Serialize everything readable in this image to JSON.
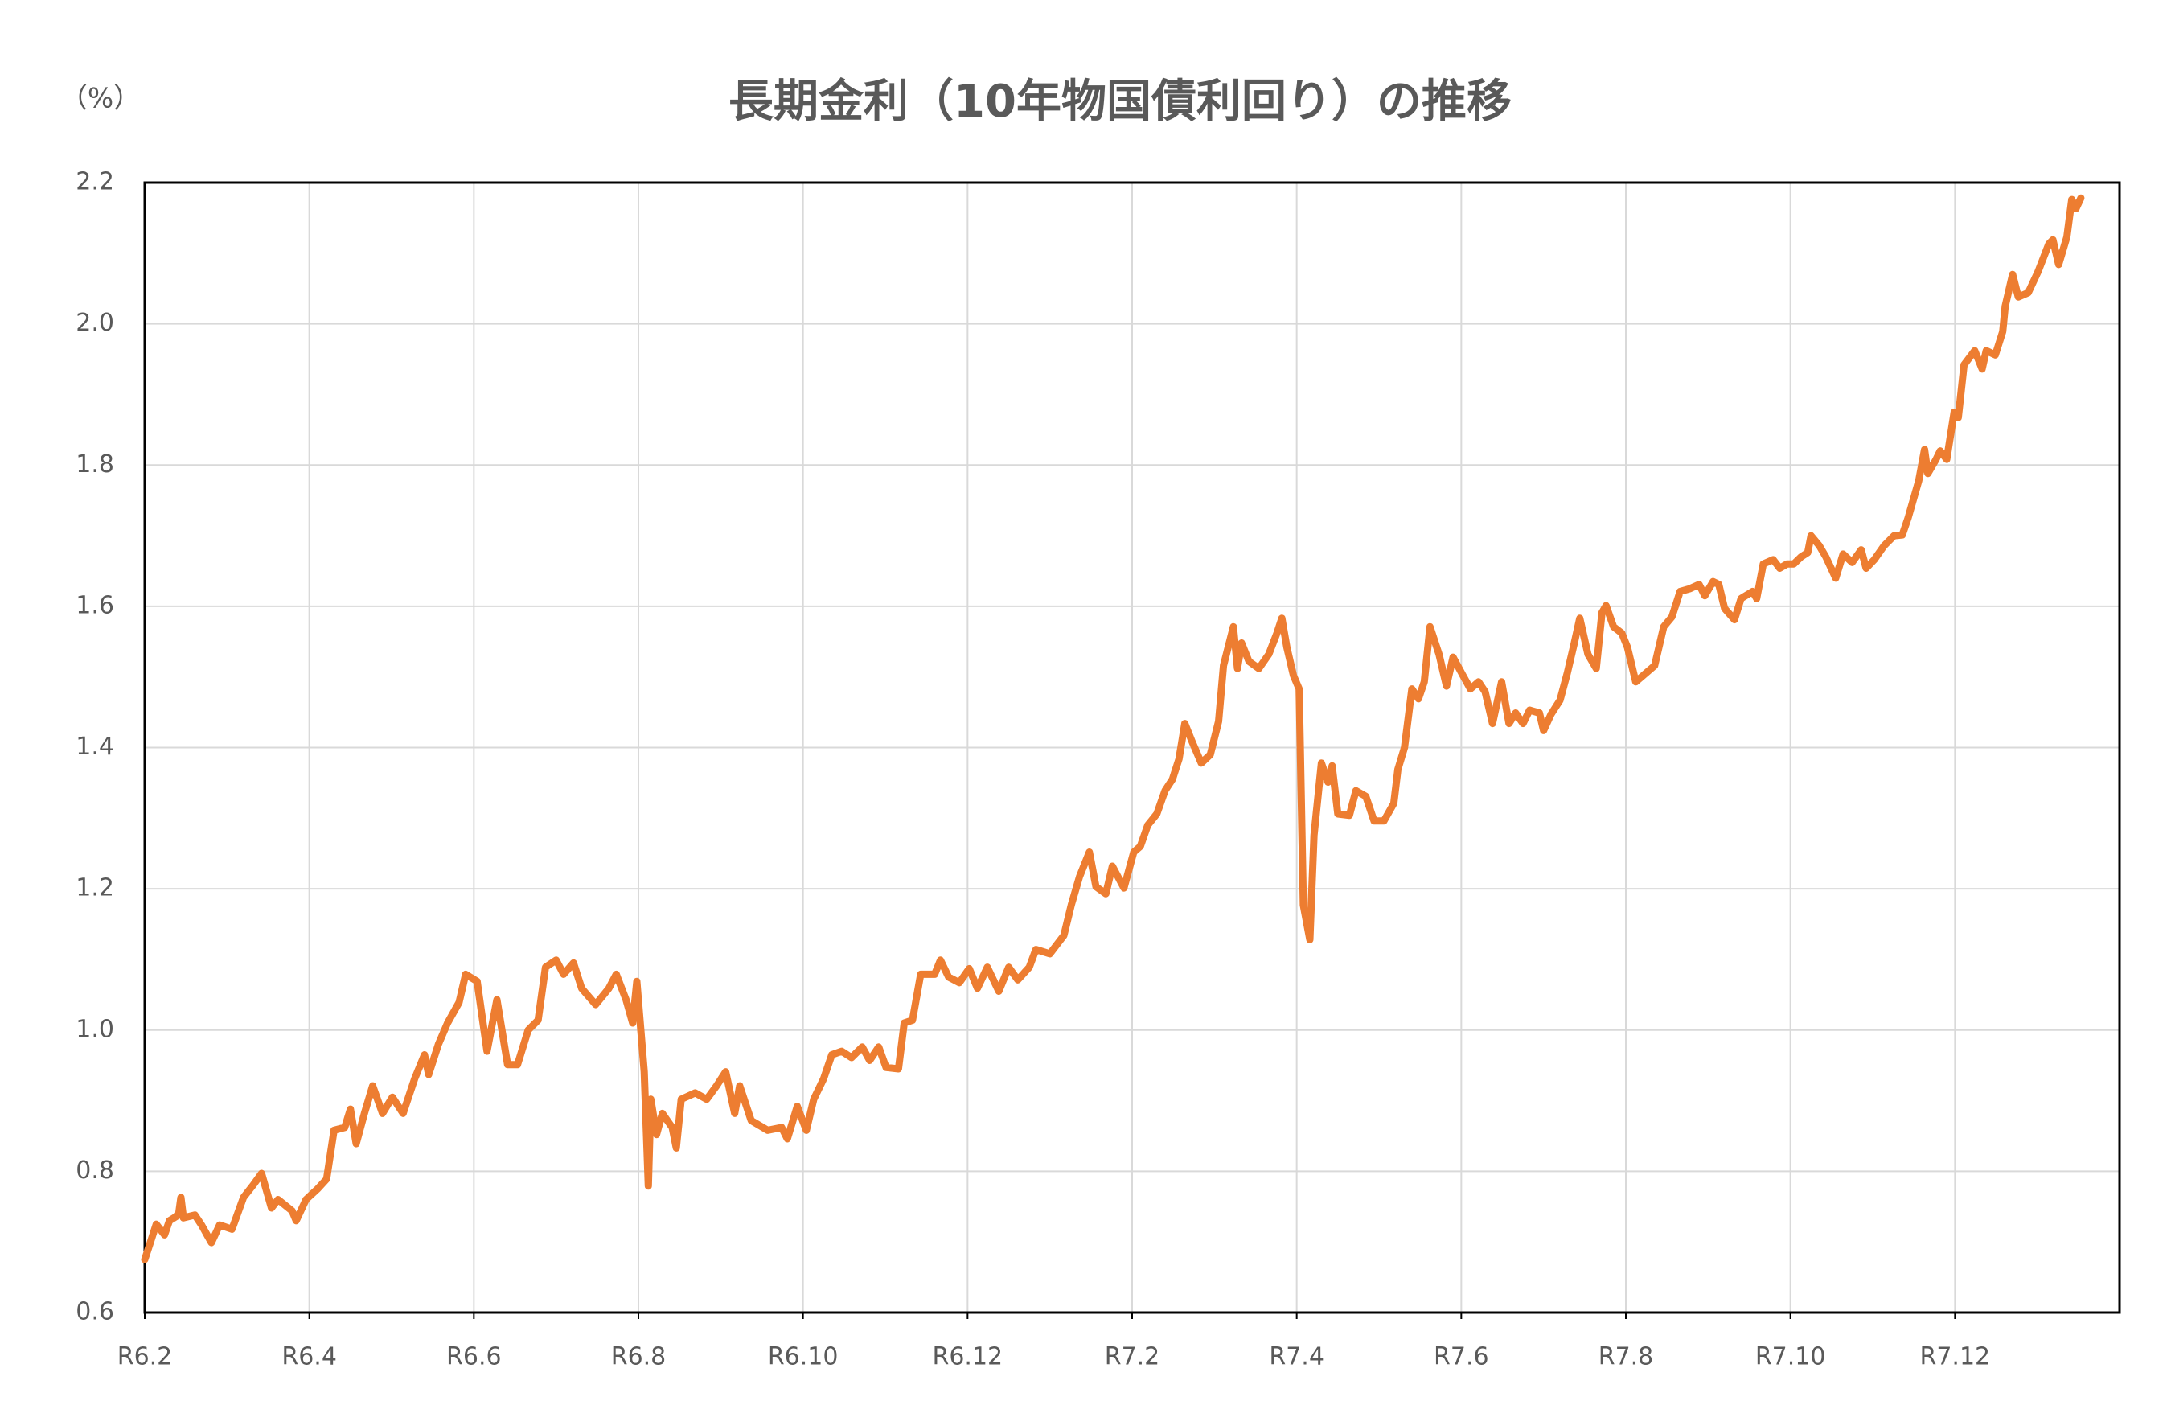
{
  "chart_data": {
    "type": "line",
    "title": "長期金利（10年物国債利回り）の推移",
    "y_unit_label": "（%）",
    "color": "#ED7D31",
    "grid": true,
    "xlim": [
      0,
      24
    ],
    "xticks": [
      {
        "value": 0,
        "label": "R6.2"
      },
      {
        "value": 2,
        "label": "R6.4"
      },
      {
        "value": 4,
        "label": "R6.6"
      },
      {
        "value": 6,
        "label": "R6.8"
      },
      {
        "value": 8,
        "label": "R6.10"
      },
      {
        "value": 10,
        "label": "R6.12"
      },
      {
        "value": 12,
        "label": "R7.2"
      },
      {
        "value": 14,
        "label": "R7.4"
      },
      {
        "value": 16,
        "label": "R7.6"
      },
      {
        "value": 18,
        "label": "R7.8"
      },
      {
        "value": 20,
        "label": "R7.10"
      },
      {
        "value": 22,
        "label": "R7.12"
      }
    ],
    "ylim": [
      0.6,
      2.2
    ],
    "yticks": [
      0.6,
      0.8,
      {
        "value": 1.0,
        "label": "1.0"
      },
      1.2,
      1.4,
      1.6,
      1.8,
      {
        "value": 2.0,
        "label": "2.0"
      },
      2.2
    ],
    "x": [
      0,
      0.07,
      0.14,
      0.24,
      0.3,
      0.41,
      0.44,
      0.47,
      0.61,
      0.69,
      0.81,
      0.91,
      1.06,
      1.2,
      1.32,
      1.42,
      1.54,
      1.62,
      1.79,
      1.84,
      1.96,
      2.1,
      2.21,
      2.3,
      2.43,
      2.5,
      2.57,
      2.67,
      2.77,
      2.89,
      3.01,
      3.14,
      3.28,
      3.4,
      3.45,
      3.57,
      3.68,
      3.82,
      3.9,
      4.04,
      4.16,
      4.28,
      4.41,
      4.53,
      4.66,
      4.78,
      4.87,
      5.0,
      5.09,
      5.21,
      5.31,
      5.48,
      5.64,
      5.73,
      5.85,
      5.93,
      5.98,
      6.07,
      6.12,
      6.15,
      6.22,
      6.29,
      6.41,
      6.46,
      6.52,
      6.69,
      6.83,
      6.95,
      7.06,
      7.17,
      7.23,
      7.37,
      7.57,
      7.74,
      7.81,
      7.93,
      8.04,
      8.13,
      8.25,
      8.35,
      8.47,
      8.59,
      8.72,
      8.81,
      8.92,
      9.01,
      9.16,
      9.23,
      9.33,
      9.43,
      9.6,
      9.67,
      9.77,
      9.9,
      10.02,
      10.12,
      10.24,
      10.38,
      10.5,
      10.61,
      10.75,
      10.83,
      11.0,
      11.17,
      11.26,
      11.36,
      11.48,
      11.56,
      11.68,
      11.76,
      11.9,
      12.02,
      12.1,
      12.19,
      12.3,
      12.4,
      12.49,
      12.57,
      12.64,
      12.73,
      12.84,
      12.95,
      13.05,
      13.11,
      13.23,
      13.28,
      13.33,
      13.42,
      13.54,
      13.66,
      13.76,
      13.82,
      13.88,
      13.96,
      14.03,
      14.08,
      14.16,
      14.21,
      14.3,
      14.38,
      14.43,
      14.5,
      14.64,
      14.72,
      14.84,
      14.94,
      15.06,
      15.18,
      15.23,
      15.31,
      15.4,
      15.48,
      15.55,
      15.62,
      15.73,
      15.82,
      15.9,
      16.02,
      16.11,
      16.21,
      16.29,
      16.38,
      16.49,
      16.58,
      16.66,
      16.75,
      16.83,
      16.95,
      17.0,
      17.09,
      17.2,
      17.29,
      17.37,
      17.44,
      17.54,
      17.64,
      17.71,
      17.76,
      17.85,
      17.95,
      18.02,
      18.12,
      18.22,
      18.35,
      18.46,
      18.56,
      18.66,
      18.78,
      18.89,
      18.96,
      19.06,
      19.13,
      19.2,
      19.32,
      19.4,
      19.54,
      19.59,
      19.67,
      19.79,
      19.87,
      19.96,
      20.04,
      20.13,
      20.21,
      20.25,
      20.35,
      20.43,
      20.55,
      20.64,
      20.75,
      20.86,
      20.92,
      21.02,
      21.14,
      21.26,
      21.36,
      21.43,
      21.56,
      21.63,
      21.67,
      21.77,
      21.82,
      21.9,
      21.99,
      22.04,
      22.11,
      22.24,
      22.33,
      22.38,
      22.49,
      22.58,
      22.61,
      22.7,
      22.77,
      22.89,
      23.01,
      23.14,
      23.19,
      23.26,
      23.36,
      23.42,
      23.47,
      23.53
    ],
    "values": [
      0.675,
      0.7,
      0.725,
      0.71,
      0.73,
      0.738,
      0.763,
      0.734,
      0.738,
      0.724,
      0.699,
      0.724,
      0.718,
      0.763,
      0.781,
      0.797,
      0.748,
      0.76,
      0.744,
      0.73,
      0.76,
      0.775,
      0.789,
      0.858,
      0.862,
      0.888,
      0.839,
      0.882,
      0.921,
      0.882,
      0.905,
      0.882,
      0.931,
      0.965,
      0.937,
      0.98,
      1.01,
      1.039,
      1.079,
      1.069,
      0.97,
      1.043,
      0.951,
      0.951,
      1.0,
      1.014,
      1.089,
      1.099,
      1.079,
      1.095,
      1.059,
      1.036,
      1.059,
      1.079,
      1.043,
      1.01,
      1.069,
      0.941,
      0.779,
      0.902,
      0.852,
      0.882,
      0.862,
      0.833,
      0.902,
      0.911,
      0.902,
      0.921,
      0.941,
      0.882,
      0.921,
      0.872,
      0.858,
      0.862,
      0.846,
      0.892,
      0.858,
      0.902,
      0.931,
      0.965,
      0.97,
      0.961,
      0.976,
      0.957,
      0.976,
      0.947,
      0.945,
      1.01,
      1.014,
      1.079,
      1.079,
      1.099,
      1.075,
      1.067,
      1.087,
      1.059,
      1.089,
      1.055,
      1.089,
      1.071,
      1.089,
      1.114,
      1.108,
      1.134,
      1.177,
      1.217,
      1.252,
      1.203,
      1.193,
      1.232,
      1.201,
      1.252,
      1.26,
      1.29,
      1.306,
      1.339,
      1.355,
      1.384,
      1.434,
      1.408,
      1.378,
      1.39,
      1.437,
      1.516,
      1.571,
      1.512,
      1.548,
      1.522,
      1.512,
      1.532,
      1.562,
      1.583,
      1.542,
      1.502,
      1.483,
      1.177,
      1.128,
      1.276,
      1.378,
      1.351,
      1.374,
      1.306,
      1.304,
      1.339,
      1.331,
      1.296,
      1.296,
      1.321,
      1.369,
      1.4,
      1.483,
      1.469,
      1.493,
      1.571,
      1.532,
      1.487,
      1.528,
      1.502,
      1.483,
      1.493,
      1.479,
      1.434,
      1.493,
      1.434,
      1.449,
      1.434,
      1.453,
      1.449,
      1.424,
      1.447,
      1.467,
      1.506,
      1.546,
      1.583,
      1.532,
      1.512,
      1.591,
      1.601,
      1.571,
      1.562,
      1.542,
      1.493,
      1.503,
      1.516,
      1.571,
      1.585,
      1.621,
      1.625,
      1.631,
      1.615,
      1.635,
      1.631,
      1.597,
      1.581,
      1.611,
      1.621,
      1.611,
      1.66,
      1.666,
      1.654,
      1.66,
      1.66,
      1.67,
      1.676,
      1.7,
      1.686,
      1.67,
      1.64,
      1.674,
      1.662,
      1.68,
      1.654,
      1.666,
      1.686,
      1.7,
      1.701,
      1.725,
      1.778,
      1.822,
      1.788,
      1.808,
      1.82,
      1.808,
      1.875,
      1.867,
      1.942,
      1.962,
      1.936,
      1.962,
      1.956,
      1.989,
      2.025,
      2.07,
      2.038,
      2.044,
      2.074,
      2.113,
      2.119,
      2.084,
      2.123,
      2.176,
      2.163,
      2.178
    ]
  }
}
